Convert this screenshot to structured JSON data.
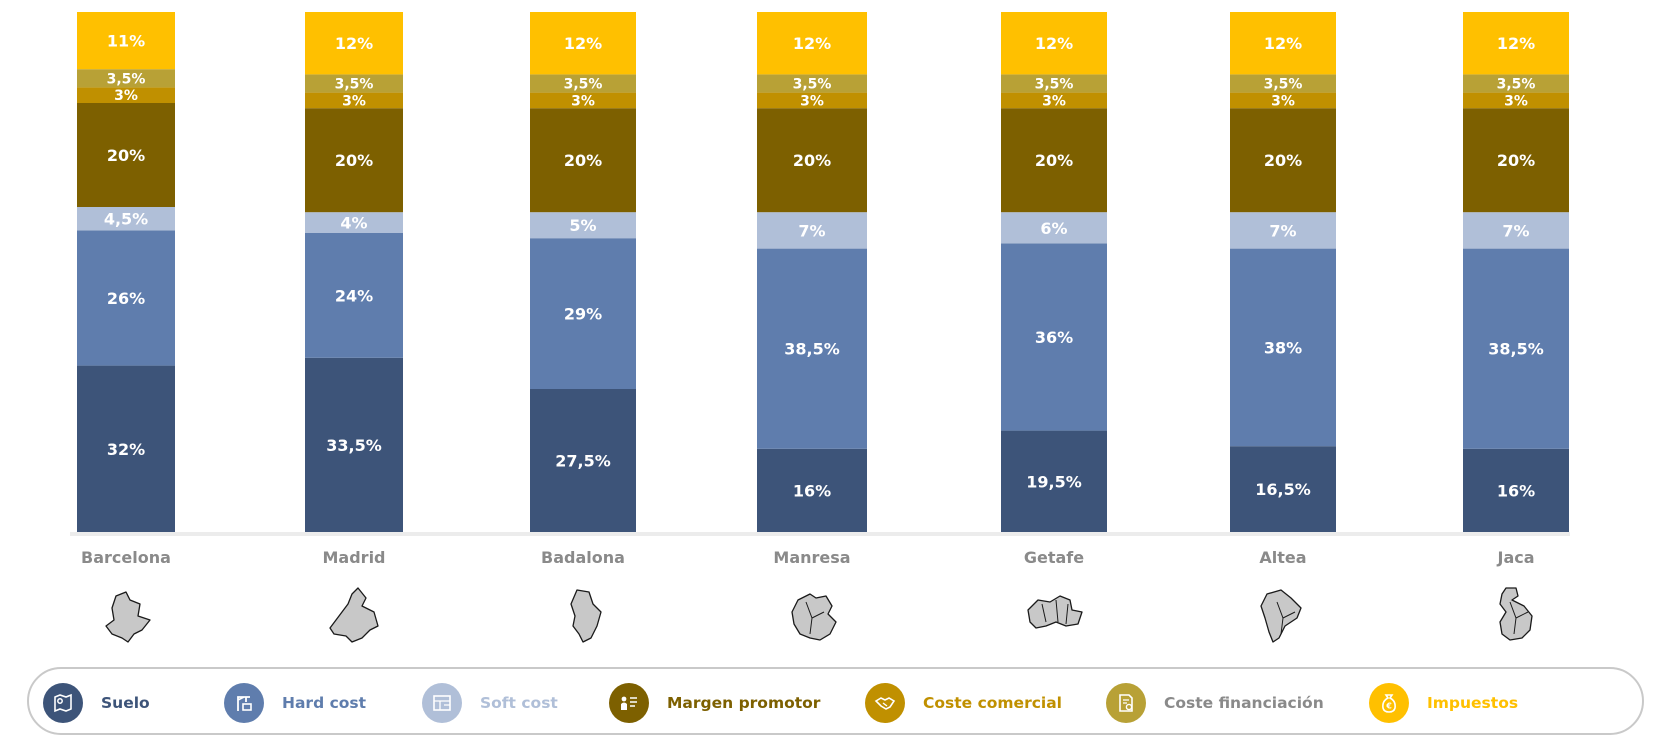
{
  "chart_data": {
    "type": "bar",
    "stacked": true,
    "categories": [
      "Barcelona",
      "Madrid",
      "Badalona",
      "Manresa",
      "Getafe",
      "Altea",
      "Jaca"
    ],
    "series": [
      {
        "name": "Suelo",
        "color": "#3d5479",
        "labels": [
          "32%",
          "33,5%",
          "27,5%",
          "16%",
          "19,5%",
          "16,5%",
          "16%"
        ],
        "values": [
          32,
          33.5,
          27.5,
          16,
          19.5,
          16.5,
          16
        ]
      },
      {
        "name": "Hard cost",
        "color": "#5f7dad",
        "labels": [
          "26%",
          "24%",
          "29%",
          "38,5%",
          "36%",
          "38%",
          "38,5%"
        ],
        "values": [
          26,
          24,
          29,
          38.5,
          36,
          38,
          38.5
        ]
      },
      {
        "name": "Soft cost",
        "color": "#b0bfd8",
        "labels": [
          "4,5%",
          "4%",
          "5%",
          "7%",
          "6%",
          "7%",
          "7%"
        ],
        "values": [
          4.5,
          4,
          5,
          7,
          6,
          7,
          7
        ]
      },
      {
        "name": "Margen promotor",
        "color": "#7d6000",
        "labels": [
          "20%",
          "20%",
          "20%",
          "20%",
          "20%",
          "20%",
          "20%"
        ],
        "values": [
          20,
          20,
          20,
          20,
          20,
          20,
          20
        ]
      },
      {
        "name": "Coste comercial",
        "color": "#c09000",
        "labels": [
          "3%",
          "3%",
          "3%",
          "3%",
          "3%",
          "3%",
          "3%"
        ],
        "values": [
          3,
          3,
          3,
          3,
          3,
          3,
          3
        ]
      },
      {
        "name": "Coste financiación",
        "color": "#b8a136",
        "labels": [
          "3,5%",
          "3,5%",
          "3,5%",
          "3,5%",
          "3,5%",
          "3,5%",
          "3,5%"
        ],
        "values": [
          3.5,
          3.5,
          3.5,
          3.5,
          3.5,
          3.5,
          3.5
        ]
      },
      {
        "name": "Impuestos",
        "color": "#ffc000",
        "labels": [
          "11%",
          "12%",
          "12%",
          "12%",
          "12%",
          "12%",
          "12%"
        ],
        "values": [
          11,
          12,
          12,
          12,
          12,
          12,
          12
        ]
      }
    ],
    "title": "",
    "xlabel": "",
    "ylabel": ""
  },
  "legend": [
    {
      "name": "Suelo",
      "icon": "map-pin-icon",
      "icon_color": "#3d5479",
      "text_color": "#3d5479"
    },
    {
      "name": "Hard cost",
      "icon": "crane-icon",
      "icon_color": "#5f7dad",
      "text_color": "#5f7dad"
    },
    {
      "name": "Soft cost",
      "icon": "blueprint-icon",
      "icon_color": "#b0bfd8",
      "text_color": "#b0bfd8"
    },
    {
      "name": "Margen promotor",
      "icon": "presenter-icon",
      "icon_color": "#7d6000",
      "text_color": "#7d6000"
    },
    {
      "name": "Coste comercial",
      "icon": "handshake-icon",
      "icon_color": "#c09000",
      "text_color": "#c09000"
    },
    {
      "name": "Coste financiación",
      "icon": "finance-document-icon",
      "icon_color": "#b8a136",
      "text_color": "#8a8a8a"
    },
    {
      "name": "Impuestos",
      "icon": "euro-bag-icon",
      "icon_color": "#ffc000",
      "text_color": "#ffc000"
    }
  ]
}
